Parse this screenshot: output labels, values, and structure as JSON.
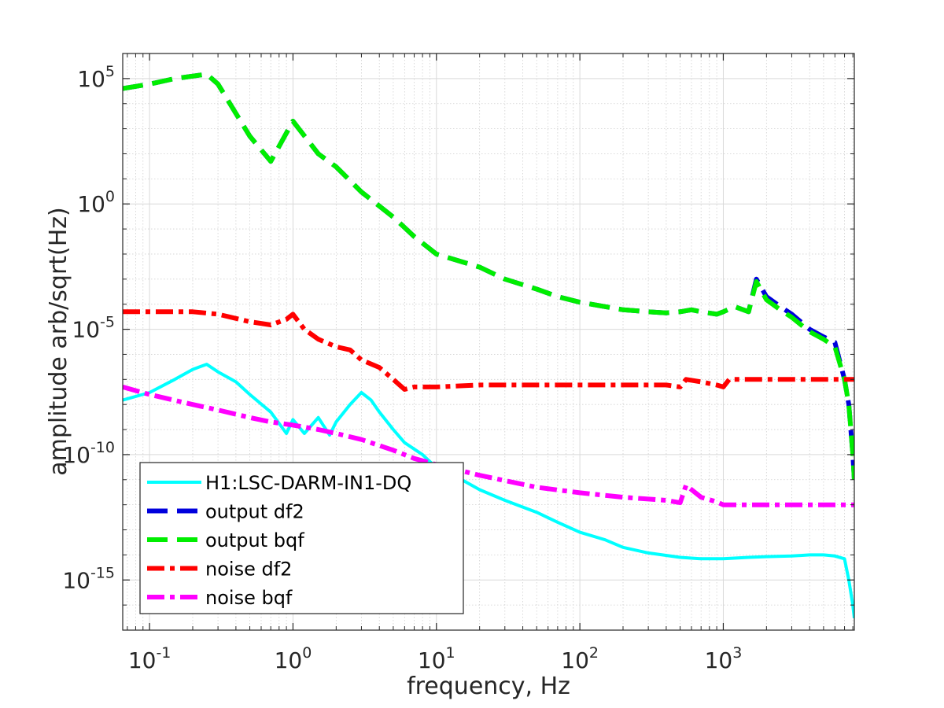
{
  "chart_data": {
    "type": "line",
    "title": "",
    "xlabel": "frequency, Hz",
    "ylabel": "amplitude arb/sqrt(Hz)",
    "xscale": "log",
    "yscale": "log",
    "xlim": [
      0.065,
      8192
    ],
    "ylim": [
      1e-17,
      1000000.0
    ],
    "grid": true,
    "minor_grid": true,
    "legend_position": "bottom-left",
    "x_ticks": [
      {
        "base": "10",
        "exp": "-1",
        "value": 0.1
      },
      {
        "base": "10",
        "exp": "0",
        "value": 1
      },
      {
        "base": "10",
        "exp": "1",
        "value": 10
      },
      {
        "base": "10",
        "exp": "2",
        "value": 100
      },
      {
        "base": "10",
        "exp": "3",
        "value": 1000
      }
    ],
    "y_ticks": [
      {
        "base": "10",
        "exp": "5",
        "value": 100000.0
      },
      {
        "base": "10",
        "exp": "0",
        "value": 1
      },
      {
        "base": "10",
        "exp": "-5",
        "value": 1e-05
      },
      {
        "base": "10",
        "exp": "-10",
        "value": 1e-10
      },
      {
        "base": "10",
        "exp": "-15",
        "value": 1e-15
      }
    ],
    "series": [
      {
        "name": "H1:LSC-DARM-IN1-DQ",
        "color": "#00ffff",
        "style": "solid",
        "x": [
          0.065,
          0.1,
          0.15,
          0.2,
          0.25,
          0.3,
          0.4,
          0.5,
          0.7,
          0.9,
          1.0,
          1.2,
          1.5,
          1.8,
          2.0,
          2.5,
          3.0,
          3.5,
          4.0,
          5.0,
          6.0,
          8.0,
          10,
          15,
          20,
          30,
          50,
          70,
          100,
          150,
          200,
          300,
          500,
          700,
          1000,
          1500,
          2000,
          3000,
          4000,
          5000,
          6000,
          7000,
          7500,
          8000,
          8192
        ],
        "y": [
          1.5e-08,
          3e-08,
          1e-07,
          2.5e-07,
          4e-07,
          2e-07,
          8e-08,
          2.5e-08,
          5e-09,
          7e-10,
          2.5e-09,
          7e-10,
          3e-09,
          6e-10,
          2e-09,
          1e-08,
          3e-08,
          1.5e-08,
          5e-09,
          1e-09,
          3e-10,
          1e-10,
          3e-11,
          1e-11,
          4e-12,
          1.5e-12,
          5e-13,
          2e-13,
          8e-14,
          4e-14,
          2e-14,
          1.2e-14,
          8e-15,
          7e-15,
          7e-15,
          8e-15,
          8.5e-15,
          9e-15,
          1e-14,
          1e-14,
          9e-15,
          7e-15,
          1e-15,
          1e-16,
          3e-17
        ]
      },
      {
        "name": "output df2",
        "color": "#0000dd",
        "style": "dashed",
        "x": [
          0.065,
          0.1,
          0.15,
          0.25,
          0.3,
          0.5,
          0.7,
          1.0,
          1.5,
          2.0,
          3.0,
          5.0,
          7.0,
          10,
          20,
          30,
          50,
          70,
          100,
          150,
          200,
          300,
          400,
          500,
          600,
          700,
          900,
          1000,
          1200,
          1500,
          1700,
          2000,
          2500,
          3000,
          4000,
          5000,
          6000,
          7000,
          7500,
          8000,
          8192
        ],
        "y": [
          40000.0,
          60000.0,
          100000.0,
          150000.0,
          60000.0,
          500,
          50,
          2000.0,
          100,
          30,
          3,
          0.3,
          0.05,
          0.01,
          0.003,
          0.001,
          0.0004,
          0.0002,
          0.00012,
          8e-05,
          6e-05,
          5e-05,
          4.5e-05,
          5e-05,
          6e-05,
          5e-05,
          4e-05,
          5e-05,
          8e-05,
          5e-05,
          0.001,
          0.0002,
          8e-05,
          4e-05,
          1e-05,
          5e-06,
          3e-06,
          1e-07,
          1e-08,
          1e-10,
          1e-11
        ]
      },
      {
        "name": "output bqf",
        "color": "#00ee00",
        "style": "dashed",
        "x": [
          0.065,
          0.1,
          0.15,
          0.25,
          0.3,
          0.5,
          0.7,
          1.0,
          1.5,
          2.0,
          3.0,
          5.0,
          7.0,
          10,
          20,
          30,
          50,
          70,
          100,
          150,
          200,
          300,
          400,
          500,
          600,
          700,
          900,
          1000,
          1200,
          1500,
          1700,
          2000,
          2500,
          3000,
          4000,
          5000,
          6000,
          7000,
          7500,
          8000,
          8192
        ],
        "y": [
          40000.0,
          60000.0,
          100000.0,
          150000.0,
          60000.0,
          500,
          50,
          2000.0,
          100,
          30,
          3,
          0.3,
          0.05,
          0.01,
          0.003,
          0.001,
          0.0004,
          0.0002,
          0.00012,
          8e-05,
          6e-05,
          5e-05,
          4.5e-05,
          5e-05,
          6e-05,
          5e-05,
          4e-05,
          5e-05,
          8e-05,
          5e-05,
          0.0008,
          0.00015,
          6e-05,
          3e-05,
          8e-06,
          4e-06,
          2e-06,
          1e-07,
          1e-08,
          1e-10,
          1e-11
        ]
      },
      {
        "name": "noise df2",
        "color": "#ff0000",
        "style": "dashdot",
        "x": [
          0.065,
          0.1,
          0.2,
          0.3,
          0.5,
          0.7,
          0.9,
          1.0,
          1.2,
          1.5,
          2.0,
          2.5,
          3.0,
          4.0,
          5.0,
          6.0,
          7.0,
          10,
          20,
          50,
          100,
          200,
          400,
          500,
          550,
          700,
          900,
          1000,
          1100,
          1500,
          2000,
          4000,
          8192
        ],
        "y": [
          5e-05,
          5e-05,
          5e-05,
          4e-05,
          2e-05,
          1.5e-05,
          2.5e-05,
          4e-05,
          1e-05,
          4e-06,
          2e-06,
          1.5e-06,
          6e-07,
          3e-07,
          1e-07,
          4e-08,
          5e-08,
          5e-08,
          6e-08,
          6e-08,
          6e-08,
          6e-08,
          6e-08,
          5e-08,
          1e-07,
          8e-08,
          6e-08,
          5e-08,
          1e-07,
          1e-07,
          1e-07,
          1e-07,
          1e-07
        ]
      },
      {
        "name": "noise bqf",
        "color": "#ff00ff",
        "style": "dashdot",
        "x": [
          0.065,
          0.1,
          0.2,
          0.3,
          0.5,
          0.7,
          1.0,
          1.5,
          2.0,
          3.0,
          5.0,
          7.0,
          10,
          20,
          50,
          100,
          200,
          400,
          500,
          550,
          700,
          900,
          1000,
          1200,
          2000,
          4000,
          8192
        ],
        "y": [
          5e-08,
          2.5e-08,
          1e-08,
          6e-09,
          3e-09,
          2e-09,
          1.5e-09,
          1e-09,
          7e-10,
          4e-10,
          1.5e-10,
          7e-11,
          4e-11,
          1.5e-11,
          5e-12,
          3e-12,
          2e-12,
          1.5e-12,
          1.2e-12,
          6e-12,
          2e-12,
          1.3e-12,
          1e-12,
          1e-12,
          1e-12,
          1e-12,
          1e-12
        ]
      }
    ]
  }
}
